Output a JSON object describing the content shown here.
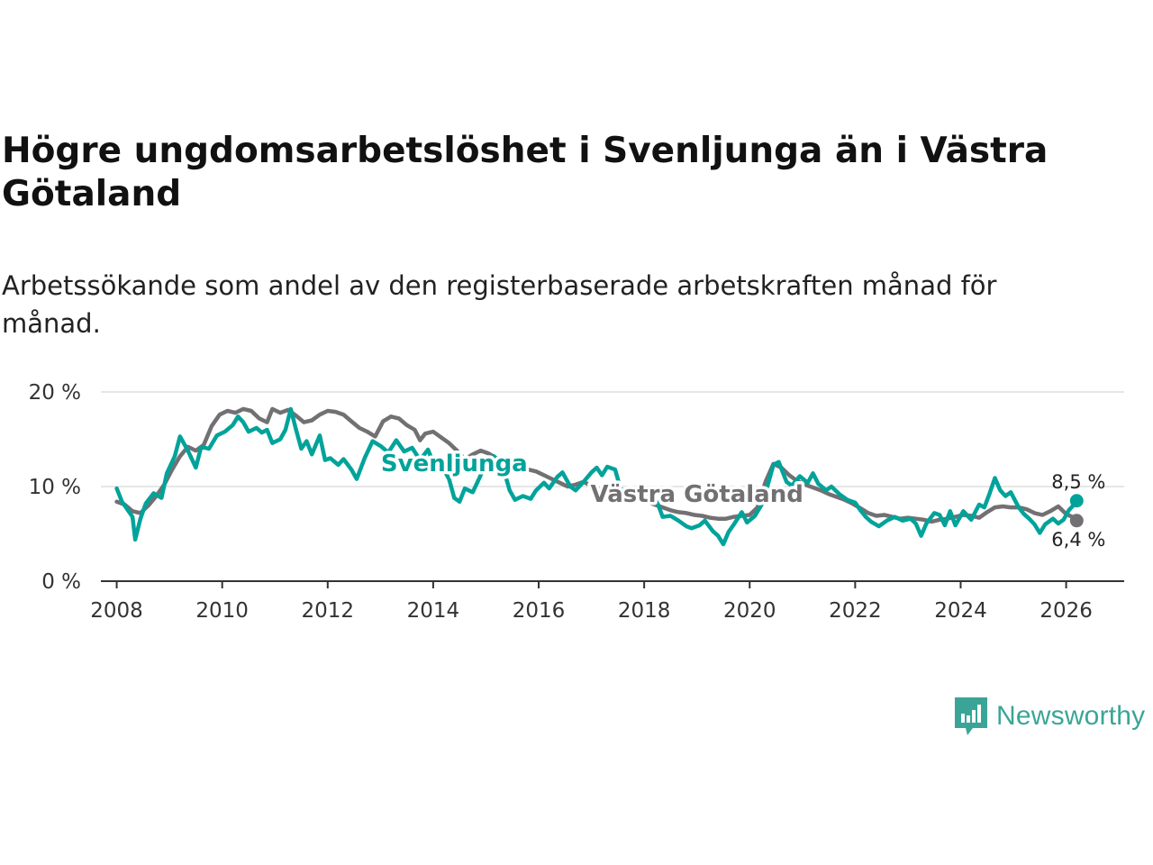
{
  "title": "Högre ungdomsarbetslöshet i Svenljunga än i Västra Götaland",
  "subtitle": "Arbetssökande som andel av den registerbaserade arbetskraften månad för månad.",
  "brand": {
    "name": "Newsworthy",
    "color": "#3aa597"
  },
  "chart_data": {
    "type": "line",
    "title": "Högre ungdomsarbetslöshet i Svenljunga än i Västra Götaland",
    "xlabel": "",
    "ylabel": "",
    "ylim": [
      0,
      20
    ],
    "xlim": [
      2007.7,
      2027.1
    ],
    "grid": true,
    "yticks": [
      {
        "value": 0,
        "label": "0 %"
      },
      {
        "value": 10,
        "label": "10 %"
      },
      {
        "value": 20,
        "label": "20 %"
      }
    ],
    "xticks": [
      {
        "value": 2008,
        "label": "2008"
      },
      {
        "value": 2010,
        "label": "2010"
      },
      {
        "value": 2012,
        "label": "2012"
      },
      {
        "value": 2014,
        "label": "2014"
      },
      {
        "value": 2016,
        "label": "2016"
      },
      {
        "value": 2018,
        "label": "2018"
      },
      {
        "value": 2020,
        "label": "2020"
      },
      {
        "value": 2022,
        "label": "2022"
      },
      {
        "value": 2024,
        "label": "2024"
      },
      {
        "value": 2026,
        "label": "2026"
      }
    ],
    "series": [
      {
        "name": "Västra Götaland",
        "color": "#737073",
        "end_label": "6,4 %",
        "points": [
          [
            2008.0,
            8.4
          ],
          [
            2008.15,
            8.1
          ],
          [
            2008.3,
            7.4
          ],
          [
            2008.45,
            7.2
          ],
          [
            2008.6,
            8.0
          ],
          [
            2008.75,
            9.0
          ],
          [
            2008.9,
            10.2
          ],
          [
            2009.05,
            11.8
          ],
          [
            2009.2,
            13.2
          ],
          [
            2009.35,
            14.2
          ],
          [
            2009.5,
            13.8
          ],
          [
            2009.65,
            14.4
          ],
          [
            2009.8,
            16.4
          ],
          [
            2009.95,
            17.6
          ],
          [
            2010.1,
            18.0
          ],
          [
            2010.25,
            17.8
          ],
          [
            2010.4,
            18.2
          ],
          [
            2010.55,
            18.0
          ],
          [
            2010.7,
            17.2
          ],
          [
            2010.85,
            16.8
          ],
          [
            2010.95,
            18.2
          ],
          [
            2011.1,
            17.8
          ],
          [
            2011.25,
            18.1
          ],
          [
            2011.4,
            17.5
          ],
          [
            2011.55,
            16.8
          ],
          [
            2011.7,
            17.0
          ],
          [
            2011.85,
            17.6
          ],
          [
            2012.0,
            18.0
          ],
          [
            2012.15,
            17.9
          ],
          [
            2012.3,
            17.6
          ],
          [
            2012.45,
            16.9
          ],
          [
            2012.6,
            16.2
          ],
          [
            2012.75,
            15.8
          ],
          [
            2012.9,
            15.3
          ],
          [
            2013.05,
            16.9
          ],
          [
            2013.2,
            17.4
          ],
          [
            2013.35,
            17.2
          ],
          [
            2013.5,
            16.5
          ],
          [
            2013.65,
            16.0
          ],
          [
            2013.75,
            14.9
          ],
          [
            2013.85,
            15.6
          ],
          [
            2014.0,
            15.8
          ],
          [
            2014.15,
            15.2
          ],
          [
            2014.3,
            14.6
          ],
          [
            2014.45,
            13.8
          ],
          [
            2014.6,
            12.9
          ],
          [
            2014.75,
            13.4
          ],
          [
            2014.9,
            13.8
          ],
          [
            2015.05,
            13.5
          ],
          [
            2015.2,
            13.0
          ],
          [
            2015.35,
            12.8
          ],
          [
            2015.5,
            12.5
          ],
          [
            2015.65,
            12.2
          ],
          [
            2015.8,
            11.8
          ],
          [
            2015.95,
            11.6
          ],
          [
            2016.1,
            11.2
          ],
          [
            2016.25,
            10.8
          ],
          [
            2016.4,
            10.4
          ],
          [
            2016.55,
            10.0
          ],
          [
            2016.7,
            10.2
          ],
          [
            2016.85,
            10.5
          ],
          [
            2017.0,
            10.1
          ],
          [
            2017.15,
            9.7
          ],
          [
            2017.3,
            9.2
          ],
          [
            2017.45,
            8.6
          ],
          [
            2017.6,
            8.4
          ],
          [
            2017.75,
            8.6
          ],
          [
            2017.9,
            8.8
          ],
          [
            2018.05,
            8.4
          ],
          [
            2018.2,
            8.1
          ],
          [
            2018.35,
            7.8
          ],
          [
            2018.5,
            7.5
          ],
          [
            2018.65,
            7.3
          ],
          [
            2018.8,
            7.2
          ],
          [
            2018.95,
            7.0
          ],
          [
            2019.1,
            6.9
          ],
          [
            2019.25,
            6.7
          ],
          [
            2019.4,
            6.6
          ],
          [
            2019.55,
            6.6
          ],
          [
            2019.7,
            6.8
          ],
          [
            2019.85,
            6.9
          ],
          [
            2020.0,
            7.0
          ],
          [
            2020.15,
            7.8
          ],
          [
            2020.3,
            10.5
          ],
          [
            2020.45,
            12.4
          ],
          [
            2020.6,
            12.0
          ],
          [
            2020.75,
            11.2
          ],
          [
            2020.9,
            10.6
          ],
          [
            2021.05,
            10.2
          ],
          [
            2021.2,
            9.9
          ],
          [
            2021.35,
            9.6
          ],
          [
            2021.5,
            9.2
          ],
          [
            2021.65,
            8.9
          ],
          [
            2021.8,
            8.6
          ],
          [
            2021.95,
            8.2
          ],
          [
            2022.1,
            7.7
          ],
          [
            2022.25,
            7.2
          ],
          [
            2022.4,
            6.9
          ],
          [
            2022.55,
            7.0
          ],
          [
            2022.7,
            6.8
          ],
          [
            2022.85,
            6.6
          ],
          [
            2023.0,
            6.7
          ],
          [
            2023.15,
            6.6
          ],
          [
            2023.3,
            6.5
          ],
          [
            2023.45,
            6.3
          ],
          [
            2023.6,
            6.5
          ],
          [
            2023.75,
            6.6
          ],
          [
            2023.9,
            6.8
          ],
          [
            2024.05,
            7.0
          ],
          [
            2024.2,
            6.9
          ],
          [
            2024.35,
            6.7
          ],
          [
            2024.5,
            7.3
          ],
          [
            2024.65,
            7.8
          ],
          [
            2024.8,
            7.9
          ],
          [
            2024.95,
            7.8
          ],
          [
            2025.1,
            7.8
          ],
          [
            2025.25,
            7.6
          ],
          [
            2025.4,
            7.2
          ],
          [
            2025.55,
            7.0
          ],
          [
            2025.7,
            7.4
          ],
          [
            2025.85,
            7.9
          ],
          [
            2026.0,
            7.1
          ],
          [
            2026.15,
            6.7
          ],
          [
            2026.2,
            6.4
          ]
        ]
      },
      {
        "name": "Svenljunga",
        "color": "#00a39a",
        "end_label": "8,5 %",
        "points": [
          [
            2008.0,
            9.8
          ],
          [
            2008.1,
            8.4
          ],
          [
            2008.2,
            7.6
          ],
          [
            2008.3,
            6.8
          ],
          [
            2008.35,
            4.4
          ],
          [
            2008.45,
            6.6
          ],
          [
            2008.55,
            8.2
          ],
          [
            2008.7,
            9.3
          ],
          [
            2008.85,
            8.8
          ],
          [
            2008.95,
            11.4
          ],
          [
            2009.1,
            13.2
          ],
          [
            2009.2,
            15.3
          ],
          [
            2009.35,
            13.8
          ],
          [
            2009.5,
            12.0
          ],
          [
            2009.6,
            14.2
          ],
          [
            2009.75,
            14.0
          ],
          [
            2009.9,
            15.4
          ],
          [
            2010.05,
            15.8
          ],
          [
            2010.2,
            16.5
          ],
          [
            2010.3,
            17.4
          ],
          [
            2010.4,
            16.8
          ],
          [
            2010.5,
            15.8
          ],
          [
            2010.65,
            16.2
          ],
          [
            2010.75,
            15.7
          ],
          [
            2010.85,
            16.0
          ],
          [
            2010.95,
            14.6
          ],
          [
            2011.1,
            15.0
          ],
          [
            2011.2,
            16.0
          ],
          [
            2011.3,
            18.2
          ],
          [
            2011.4,
            16.0
          ],
          [
            2011.5,
            14.0
          ],
          [
            2011.6,
            14.8
          ],
          [
            2011.7,
            13.4
          ],
          [
            2011.85,
            15.4
          ],
          [
            2011.95,
            12.8
          ],
          [
            2012.05,
            13.0
          ],
          [
            2012.2,
            12.3
          ],
          [
            2012.3,
            12.9
          ],
          [
            2012.45,
            11.8
          ],
          [
            2012.55,
            10.8
          ],
          [
            2012.7,
            13.0
          ],
          [
            2012.85,
            14.8
          ],
          [
            2013.0,
            14.3
          ],
          [
            2013.15,
            13.6
          ],
          [
            2013.3,
            14.9
          ],
          [
            2013.45,
            13.7
          ],
          [
            2013.6,
            14.1
          ],
          [
            2013.75,
            12.8
          ],
          [
            2013.9,
            13.9
          ],
          [
            2014.05,
            11.9
          ],
          [
            2014.15,
            12.3
          ],
          [
            2014.3,
            10.8
          ],
          [
            2014.4,
            8.8
          ],
          [
            2014.5,
            8.4
          ],
          [
            2014.6,
            9.8
          ],
          [
            2014.75,
            9.4
          ],
          [
            2014.85,
            10.6
          ],
          [
            2015.0,
            12.4
          ],
          [
            2015.15,
            13.2
          ],
          [
            2015.3,
            12.5
          ],
          [
            2015.45,
            9.6
          ],
          [
            2015.55,
            8.6
          ],
          [
            2015.7,
            9.0
          ],
          [
            2015.85,
            8.7
          ],
          [
            2015.95,
            9.6
          ],
          [
            2016.1,
            10.4
          ],
          [
            2016.2,
            9.8
          ],
          [
            2016.35,
            11.0
          ],
          [
            2016.45,
            11.5
          ],
          [
            2016.6,
            10.0
          ],
          [
            2016.7,
            9.6
          ],
          [
            2016.85,
            10.5
          ],
          [
            2017.0,
            11.5
          ],
          [
            2017.1,
            12.0
          ],
          [
            2017.2,
            11.2
          ],
          [
            2017.3,
            12.1
          ],
          [
            2017.45,
            11.8
          ],
          [
            2017.55,
            9.8
          ],
          [
            2017.7,
            9.1
          ],
          [
            2017.85,
            9.6
          ],
          [
            2017.95,
            10.1
          ],
          [
            2018.1,
            9.0
          ],
          [
            2018.25,
            8.3
          ],
          [
            2018.35,
            6.8
          ],
          [
            2018.5,
            6.9
          ],
          [
            2018.65,
            6.4
          ],
          [
            2018.8,
            5.8
          ],
          [
            2018.9,
            5.6
          ],
          [
            2019.05,
            5.9
          ],
          [
            2019.15,
            6.4
          ],
          [
            2019.3,
            5.3
          ],
          [
            2019.4,
            4.8
          ],
          [
            2019.5,
            3.9
          ],
          [
            2019.6,
            5.2
          ],
          [
            2019.7,
            6.0
          ],
          [
            2019.85,
            7.3
          ],
          [
            2019.95,
            6.2
          ],
          [
            2020.1,
            6.9
          ],
          [
            2020.25,
            8.3
          ],
          [
            2020.35,
            10.3
          ],
          [
            2020.45,
            12.3
          ],
          [
            2020.55,
            12.6
          ],
          [
            2020.7,
            10.5
          ],
          [
            2020.8,
            10.1
          ],
          [
            2020.95,
            11.1
          ],
          [
            2021.1,
            10.4
          ],
          [
            2021.2,
            11.4
          ],
          [
            2021.3,
            10.3
          ],
          [
            2021.45,
            9.6
          ],
          [
            2021.55,
            10.0
          ],
          [
            2021.7,
            9.2
          ],
          [
            2021.85,
            8.6
          ],
          [
            2022.0,
            8.3
          ],
          [
            2022.1,
            7.5
          ],
          [
            2022.2,
            6.8
          ],
          [
            2022.3,
            6.3
          ],
          [
            2022.45,
            5.8
          ],
          [
            2022.6,
            6.4
          ],
          [
            2022.75,
            6.8
          ],
          [
            2022.9,
            6.4
          ],
          [
            2023.05,
            6.6
          ],
          [
            2023.15,
            6.1
          ],
          [
            2023.25,
            4.8
          ],
          [
            2023.35,
            6.1
          ],
          [
            2023.5,
            7.2
          ],
          [
            2023.6,
            7.0
          ],
          [
            2023.7,
            5.9
          ],
          [
            2023.8,
            7.4
          ],
          [
            2023.9,
            5.9
          ],
          [
            2024.05,
            7.4
          ],
          [
            2024.2,
            6.5
          ],
          [
            2024.35,
            8.1
          ],
          [
            2024.45,
            7.8
          ],
          [
            2024.55,
            9.3
          ],
          [
            2024.65,
            10.9
          ],
          [
            2024.75,
            9.6
          ],
          [
            2024.85,
            9.0
          ],
          [
            2024.95,
            9.4
          ],
          [
            2025.1,
            7.8
          ],
          [
            2025.2,
            7.1
          ],
          [
            2025.3,
            6.6
          ],
          [
            2025.4,
            6.0
          ],
          [
            2025.5,
            5.1
          ],
          [
            2025.6,
            6.0
          ],
          [
            2025.75,
            6.6
          ],
          [
            2025.85,
            6.1
          ],
          [
            2025.95,
            6.5
          ],
          [
            2026.05,
            7.5
          ],
          [
            2026.15,
            8.1
          ],
          [
            2026.2,
            8.5
          ]
        ]
      }
    ],
    "annotations": [
      {
        "text": "Svenljunga",
        "series": "Svenljunga",
        "x": 2014.4,
        "y": 11.6
      },
      {
        "text": "Västra Götaland",
        "series": "Västra Götaland",
        "x": 2019.0,
        "y": 8.4
      }
    ]
  }
}
